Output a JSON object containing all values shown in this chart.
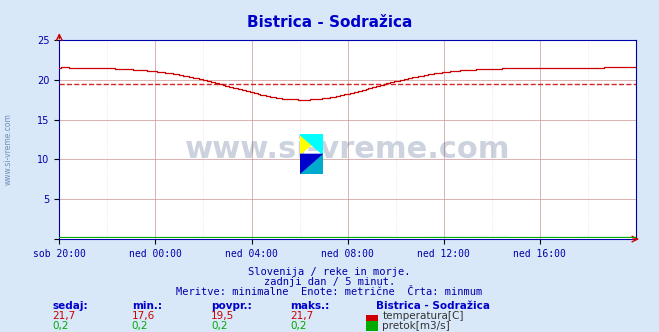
{
  "title": "Bistrica - Sodražica",
  "title_color": "#0000cc",
  "bg_color": "#d8e8f8",
  "plot_bg_color": "#ffffff",
  "grid_color_major": "#cc9999",
  "grid_color_minor": "#ffcccc",
  "xlabel_color": "#0000aa",
  "ylabel_color": "#0000aa",
  "xtick_labels": [
    "sob 20:00",
    "ned 00:00",
    "ned 04:00",
    "ned 08:00",
    "ned 12:00",
    "ned 16:00"
  ],
  "xtick_positions": [
    0,
    48,
    96,
    144,
    192,
    240
  ],
  "ytick_positions": [
    0,
    5,
    10,
    15,
    20,
    25
  ],
  "ylim": [
    0,
    25
  ],
  "xlim": [
    0,
    288
  ],
  "temp_color": "#cc0000",
  "pretok_color": "#00aa00",
  "avg_line_value": 19.5,
  "avg_line_color": "#cc0000",
  "watermark": "www.si-vreme.com",
  "watermark_color": "#1a3a6b",
  "footer_line1": "Slovenija / reke in morje.",
  "footer_line2": "zadnji dan / 5 minut.",
  "footer_line3": "Meritve: minimalne  Enote: metrične  Črta: minmum",
  "footer_color": "#0000aa",
  "legend_title": "Bistrica - Sodražica",
  "legend_color": "#0000cc",
  "table_headers": [
    "sedaj:",
    "min.:",
    "povpr.:",
    "maks.:"
  ],
  "table_temp": [
    "21,7",
    "17,6",
    "19,5",
    "21,7"
  ],
  "table_pretok": [
    "0,2",
    "0,2",
    "0,2",
    "0,2"
  ],
  "table_color": "#0000cc",
  "sidebar_text": "www.si-vreme.com",
  "sidebar_color": "#5577aa"
}
